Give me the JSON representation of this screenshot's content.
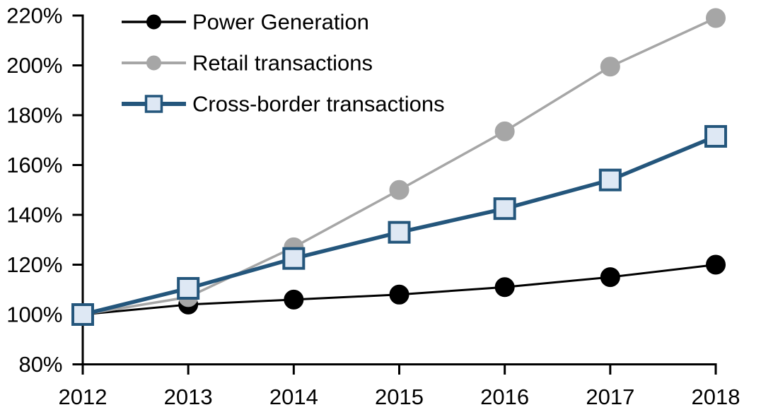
{
  "chart_data": {
    "type": "line",
    "title": "",
    "xlabel": "",
    "ylabel": "",
    "background": "#FFFFFF",
    "grid": false,
    "legend_position": "top-left-inside",
    "x_categories": [
      "2012",
      "2013",
      "2014",
      "2015",
      "2016",
      "2017",
      "2018"
    ],
    "ylim": [
      80,
      220
    ],
    "y_ticks": [
      220,
      200,
      180,
      160,
      140,
      120,
      100,
      80
    ],
    "y_tick_labels": [
      "220%",
      "200%",
      "180%",
      "160%",
      "140%",
      "120%",
      "100%",
      "80%"
    ],
    "series": [
      {
        "name": "Power Generation",
        "values": [
          100,
          104,
          106,
          108,
          111,
          115,
          120
        ],
        "line_color": "#000000",
        "marker": "circle",
        "marker_fill": "#000000",
        "marker_stroke": "#000000"
      },
      {
        "name": "Retail transactions",
        "values": [
          100,
          107,
          127,
          150,
          173.5,
          199.5,
          219
        ],
        "line_color": "#A6A6A6",
        "marker": "circle",
        "marker_fill": "#A6A6A6",
        "marker_stroke": "#A6A6A6"
      },
      {
        "name": "Cross-border transactions",
        "values": [
          100,
          110.5,
          122.5,
          133,
          142.5,
          154,
          171.5
        ],
        "line_color": "#24567C",
        "marker": "square",
        "marker_fill": "#DEE8F4",
        "marker_stroke": "#24567C"
      }
    ],
    "axis_color": "#000000",
    "tick_label_color": "#000000",
    "legend_text_color": "#000000"
  }
}
